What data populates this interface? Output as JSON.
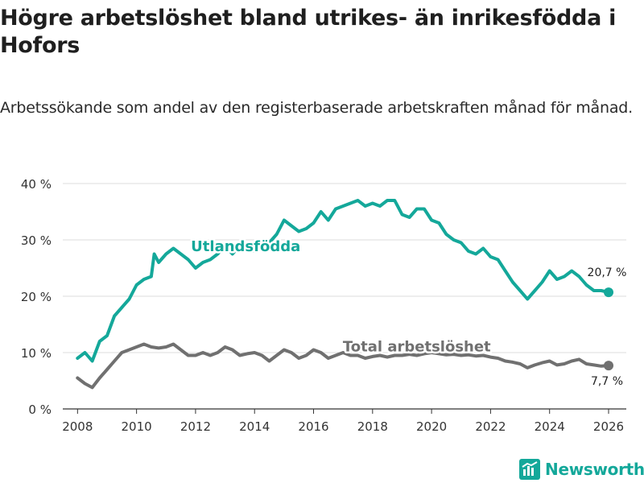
{
  "header": {
    "title": "Högre arbetslöshet bland utrikes- än inrikesfödda i Hofors",
    "subtitle": "Arbetssökande som andel av den registerbaserade arbetskraften månad för månad."
  },
  "brand": {
    "name": "Newsworthy"
  },
  "chart_data": {
    "type": "line",
    "title": "Högre arbetslöshet bland utrikes- än inrikesfödda i Hofors",
    "subtitle": "Arbetssökande som andel av den registerbaserade arbetskraften månad för månad.",
    "xlabel": "",
    "ylabel": "",
    "xlim": [
      2007.5,
      2026.6
    ],
    "ylim": [
      0,
      40
    ],
    "x_ticks": [
      2008,
      2010,
      2012,
      2014,
      2016,
      2018,
      2020,
      2022,
      2024,
      2026
    ],
    "x_tick_labels": [
      "2008",
      "2010",
      "2012",
      "2014",
      "2016",
      "2018",
      "2020",
      "2022",
      "2024",
      "2026"
    ],
    "y_ticks": [
      0,
      10,
      20,
      30,
      40
    ],
    "y_tick_labels": [
      "0 %",
      "10 %",
      "20 %",
      "30 %",
      "40 %"
    ],
    "grid": true,
    "legend": "inline labels",
    "series": [
      {
        "name": "Utlandsfödda",
        "color": "#14a89a",
        "end_label": "20,7 %",
        "points": [
          [
            2008.0,
            9.0
          ],
          [
            2008.25,
            10.0
          ],
          [
            2008.5,
            8.5
          ],
          [
            2008.75,
            12.0
          ],
          [
            2009.0,
            13.0
          ],
          [
            2009.25,
            16.5
          ],
          [
            2009.5,
            18.0
          ],
          [
            2009.75,
            19.5
          ],
          [
            2010.0,
            22.0
          ],
          [
            2010.25,
            23.0
          ],
          [
            2010.5,
            23.5
          ],
          [
            2010.6,
            27.5
          ],
          [
            2010.75,
            26.0
          ],
          [
            2011.0,
            27.5
          ],
          [
            2011.25,
            28.5
          ],
          [
            2011.5,
            27.5
          ],
          [
            2011.75,
            26.5
          ],
          [
            2012.0,
            25.0
          ],
          [
            2012.25,
            26.0
          ],
          [
            2012.5,
            26.5
          ],
          [
            2012.75,
            27.5
          ],
          [
            2013.0,
            29.0
          ],
          [
            2013.25,
            27.5
          ],
          [
            2013.5,
            29.0
          ],
          [
            2013.75,
            28.5
          ],
          [
            2014.0,
            28.0
          ],
          [
            2014.25,
            29.0
          ],
          [
            2014.5,
            29.5
          ],
          [
            2014.75,
            31.0
          ],
          [
            2015.0,
            33.5
          ],
          [
            2015.25,
            32.5
          ],
          [
            2015.5,
            31.5
          ],
          [
            2015.75,
            32.0
          ],
          [
            2016.0,
            33.0
          ],
          [
            2016.25,
            35.0
          ],
          [
            2016.5,
            33.5
          ],
          [
            2016.75,
            35.5
          ],
          [
            2017.0,
            36.0
          ],
          [
            2017.25,
            36.5
          ],
          [
            2017.5,
            37.0
          ],
          [
            2017.75,
            36.0
          ],
          [
            2018.0,
            36.5
          ],
          [
            2018.25,
            36.0
          ],
          [
            2018.5,
            37.0
          ],
          [
            2018.75,
            37.0
          ],
          [
            2019.0,
            34.5
          ],
          [
            2019.25,
            34.0
          ],
          [
            2019.5,
            35.5
          ],
          [
            2019.75,
            35.5
          ],
          [
            2020.0,
            33.5
          ],
          [
            2020.25,
            33.0
          ],
          [
            2020.5,
            31.0
          ],
          [
            2020.75,
            30.0
          ],
          [
            2021.0,
            29.5
          ],
          [
            2021.25,
            28.0
          ],
          [
            2021.5,
            27.5
          ],
          [
            2021.75,
            28.5
          ],
          [
            2022.0,
            27.0
          ],
          [
            2022.25,
            26.5
          ],
          [
            2022.5,
            24.5
          ],
          [
            2022.75,
            22.5
          ],
          [
            2023.0,
            21.0
          ],
          [
            2023.25,
            19.5
          ],
          [
            2023.5,
            21.0
          ],
          [
            2023.75,
            22.5
          ],
          [
            2024.0,
            24.5
          ],
          [
            2024.25,
            23.0
          ],
          [
            2024.5,
            23.5
          ],
          [
            2024.75,
            24.5
          ],
          [
            2025.0,
            23.5
          ],
          [
            2025.25,
            22.0
          ],
          [
            2025.5,
            21.0
          ],
          [
            2025.75,
            21.0
          ],
          [
            2026.0,
            20.7
          ]
        ]
      },
      {
        "name": "Total arbetslöshet",
        "color": "#707070",
        "end_label": "7,7 %",
        "points": [
          [
            2008.0,
            5.5
          ],
          [
            2008.25,
            4.5
          ],
          [
            2008.5,
            3.8
          ],
          [
            2008.75,
            5.5
          ],
          [
            2009.0,
            7.0
          ],
          [
            2009.25,
            8.5
          ],
          [
            2009.5,
            10.0
          ],
          [
            2009.75,
            10.5
          ],
          [
            2010.0,
            11.0
          ],
          [
            2010.25,
            11.5
          ],
          [
            2010.5,
            11.0
          ],
          [
            2010.75,
            10.8
          ],
          [
            2011.0,
            11.0
          ],
          [
            2011.25,
            11.5
          ],
          [
            2011.5,
            10.5
          ],
          [
            2011.75,
            9.5
          ],
          [
            2012.0,
            9.5
          ],
          [
            2012.25,
            10.0
          ],
          [
            2012.5,
            9.5
          ],
          [
            2012.75,
            10.0
          ],
          [
            2013.0,
            11.0
          ],
          [
            2013.25,
            10.5
          ],
          [
            2013.5,
            9.5
          ],
          [
            2013.75,
            9.8
          ],
          [
            2014.0,
            10.0
          ],
          [
            2014.25,
            9.5
          ],
          [
            2014.5,
            8.5
          ],
          [
            2014.75,
            9.5
          ],
          [
            2015.0,
            10.5
          ],
          [
            2015.25,
            10.0
          ],
          [
            2015.5,
            9.0
          ],
          [
            2015.75,
            9.5
          ],
          [
            2016.0,
            10.5
          ],
          [
            2016.25,
            10.0
          ],
          [
            2016.5,
            9.0
          ],
          [
            2016.75,
            9.5
          ],
          [
            2017.0,
            10.0
          ],
          [
            2017.25,
            9.5
          ],
          [
            2017.5,
            9.5
          ],
          [
            2017.75,
            9.0
          ],
          [
            2018.0,
            9.3
          ],
          [
            2018.25,
            9.5
          ],
          [
            2018.5,
            9.2
          ],
          [
            2018.75,
            9.5
          ],
          [
            2019.0,
            9.5
          ],
          [
            2019.25,
            9.7
          ],
          [
            2019.5,
            9.5
          ],
          [
            2019.75,
            9.8
          ],
          [
            2020.0,
            10.0
          ],
          [
            2020.25,
            9.8
          ],
          [
            2020.5,
            9.6
          ],
          [
            2020.75,
            9.7
          ],
          [
            2021.0,
            9.5
          ],
          [
            2021.25,
            9.6
          ],
          [
            2021.5,
            9.4
          ],
          [
            2021.75,
            9.5
          ],
          [
            2022.0,
            9.2
          ],
          [
            2022.25,
            9.0
          ],
          [
            2022.5,
            8.5
          ],
          [
            2022.75,
            8.3
          ],
          [
            2023.0,
            8.0
          ],
          [
            2023.25,
            7.3
          ],
          [
            2023.5,
            7.8
          ],
          [
            2023.75,
            8.2
          ],
          [
            2024.0,
            8.5
          ],
          [
            2024.25,
            7.8
          ],
          [
            2024.5,
            8.0
          ],
          [
            2024.75,
            8.5
          ],
          [
            2025.0,
            8.8
          ],
          [
            2025.25,
            8.0
          ],
          [
            2025.5,
            7.8
          ],
          [
            2025.75,
            7.6
          ],
          [
            2026.0,
            7.7
          ]
        ]
      }
    ]
  }
}
